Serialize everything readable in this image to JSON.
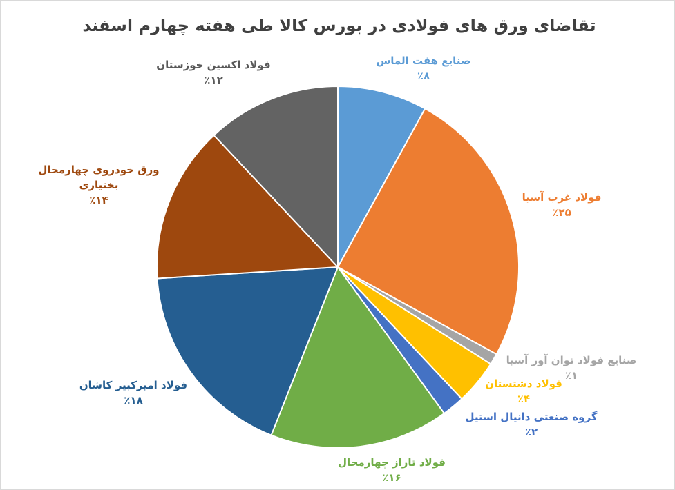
{
  "chart_data": {
    "type": "pie",
    "title": "تقاضای ورق های فولادی در بورس کالا طی هفته چهارم اسفند",
    "slices": [
      {
        "label": "صنایع هفت الماس",
        "value": 8,
        "value_label": "٪۸",
        "color": "#5B9BD5"
      },
      {
        "label": "فولاد غرب آسیا",
        "value": 25,
        "value_label": "٪۲۵",
        "color": "#ED7D31"
      },
      {
        "label": "صنایع فولاد توان آور آسیا",
        "value": 1,
        "value_label": "٪۱",
        "color": "#A5A5A5"
      },
      {
        "label": "فولاد دشتستان",
        "value": 4,
        "value_label": "٪۴",
        "color": "#FFC000"
      },
      {
        "label": "گروه صنعتی دانیال استیل",
        "value": 2,
        "value_label": "٪۲",
        "color": "#4472C4"
      },
      {
        "label": "فولاد تاراز چهارمحال",
        "value": 16,
        "value_label": "٪۱۶",
        "color": "#70AD47"
      },
      {
        "label": "فولاد امیرکبیر کاشان",
        "value": 18,
        "value_label": "٪۱۸",
        "color": "#255E91"
      },
      {
        "label": "ورق خودروی چهارمحال بختیاری",
        "value": 14,
        "value_label": "٪۱۴",
        "color": "#9E480E"
      },
      {
        "label": "فولاد اکسین خوزستان",
        "value": 12,
        "value_label": "٪۱۲",
        "color": "#636363"
      }
    ]
  }
}
